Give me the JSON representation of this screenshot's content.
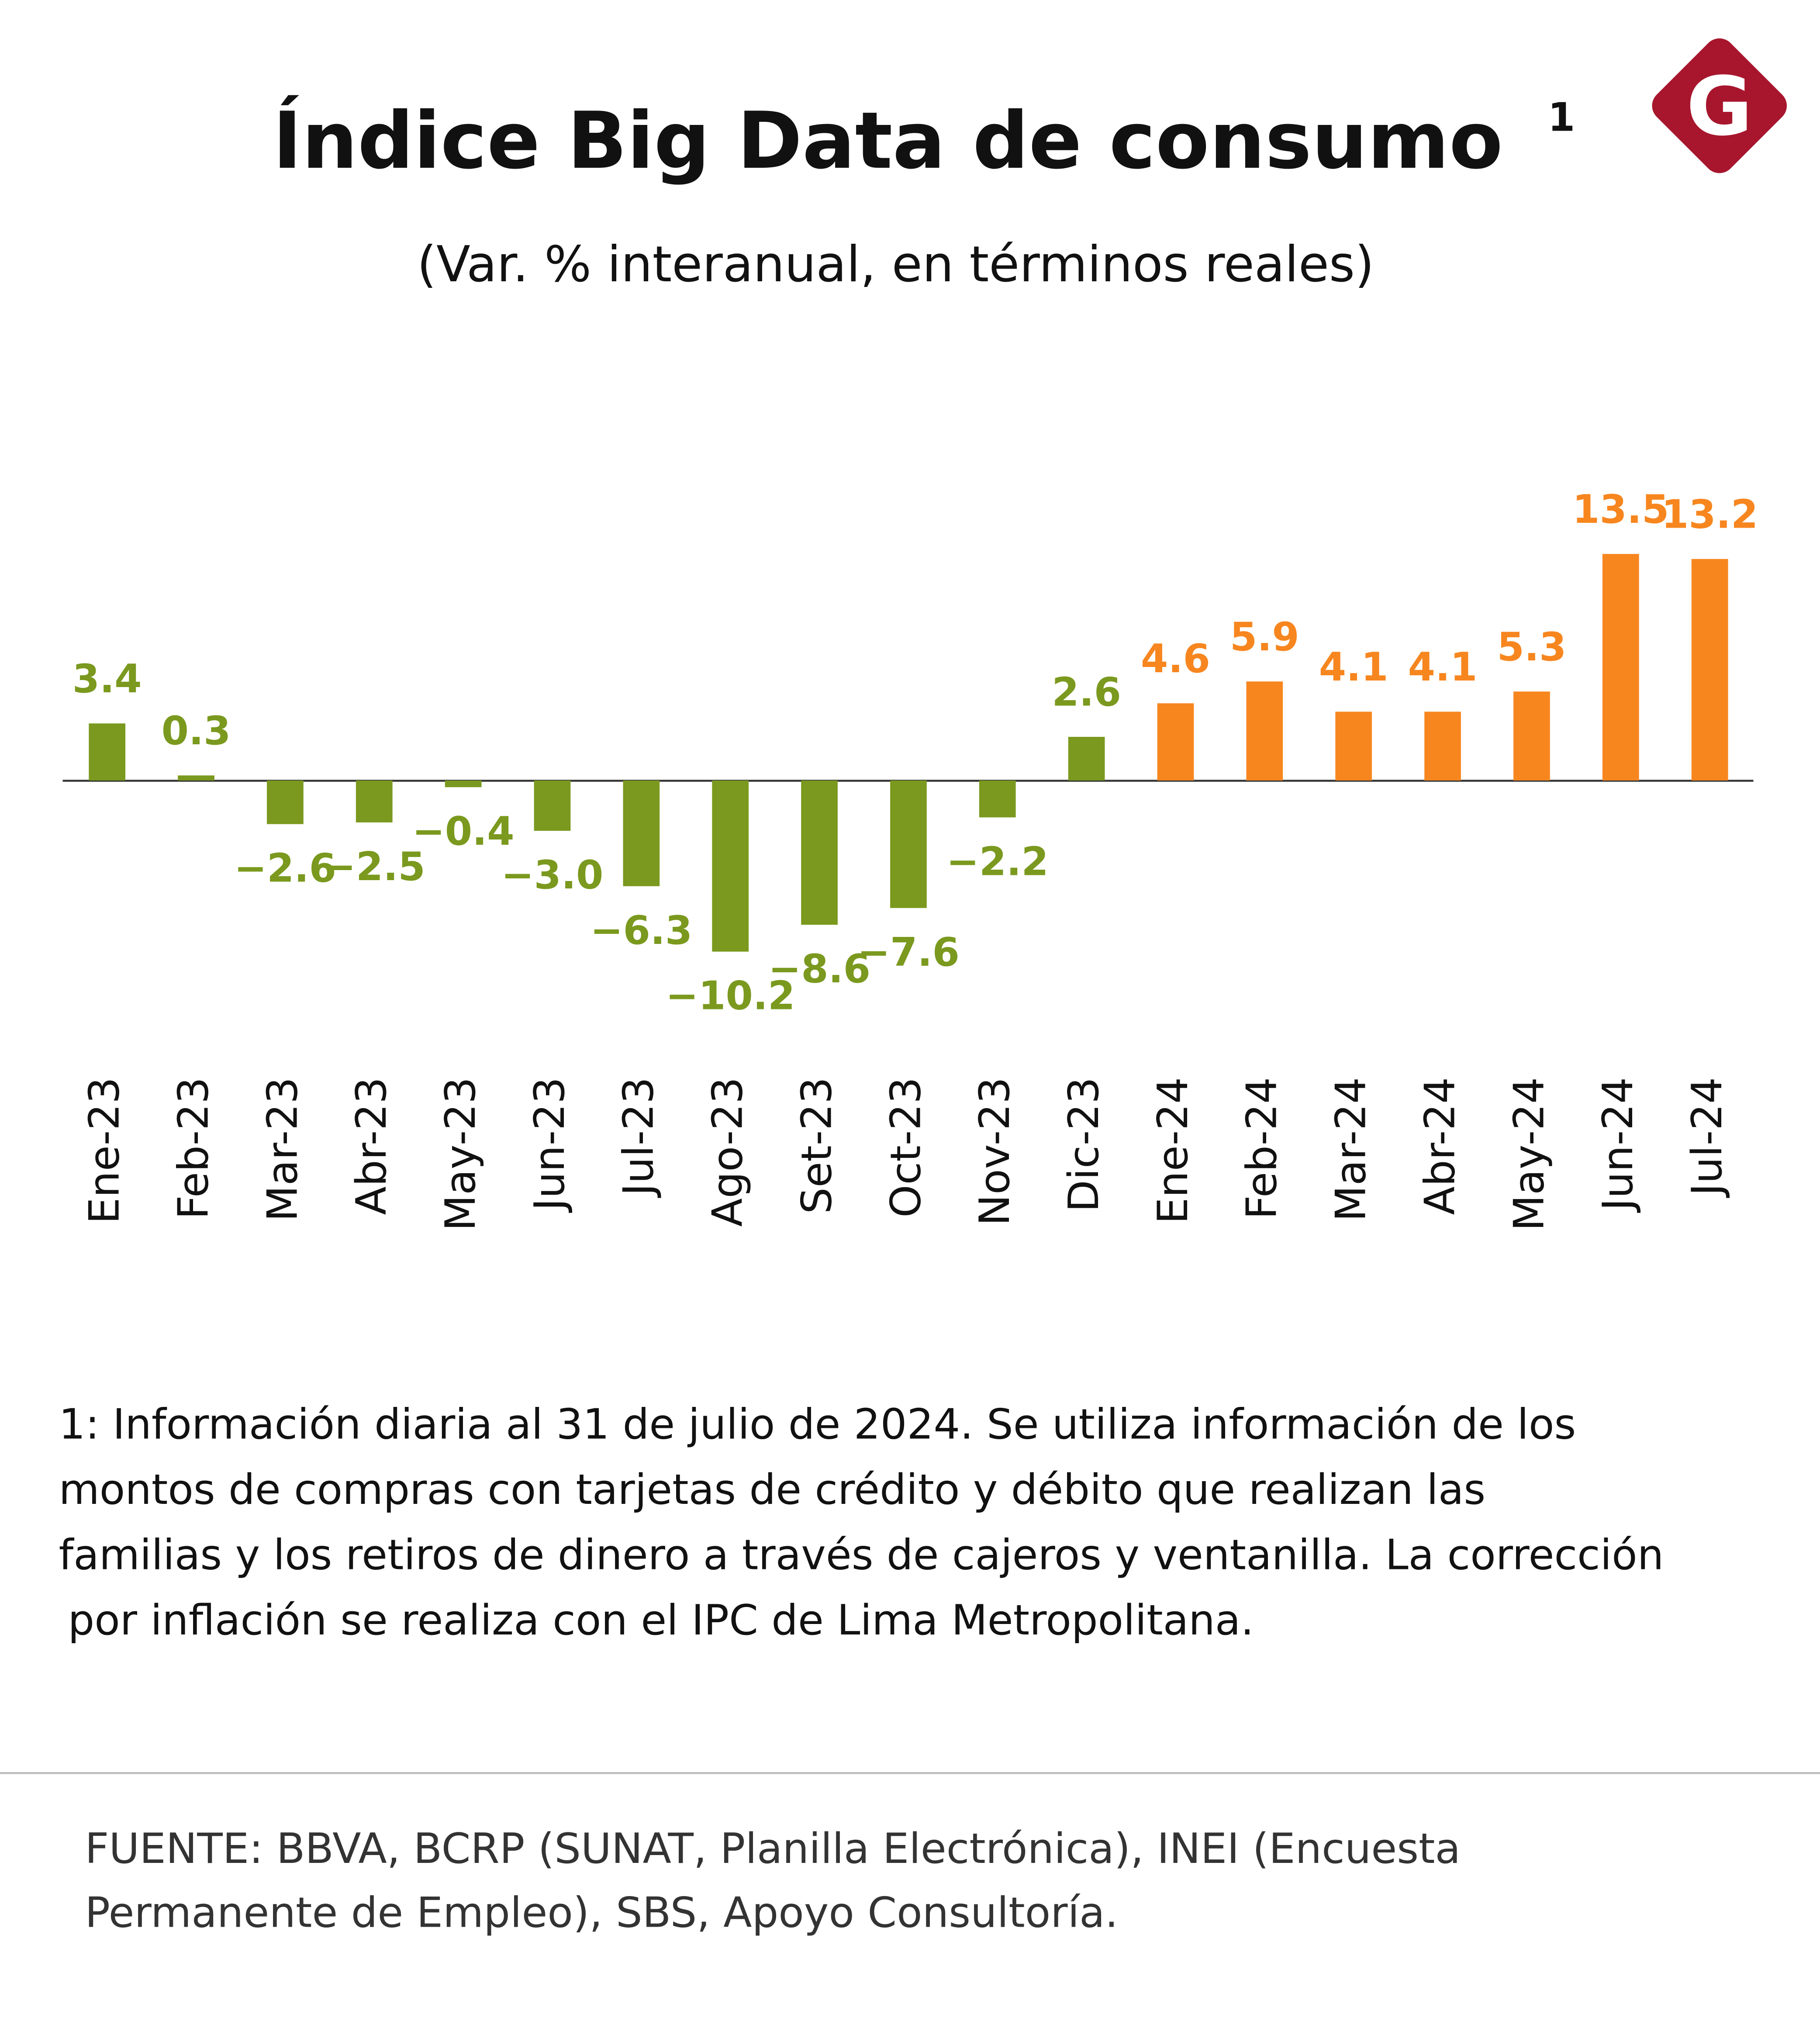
{
  "title": "Índice Big Data de consumo",
  "title_note": "1",
  "logo": "G",
  "chart_data": {
    "type": "bar",
    "subtitle": "(Var. % interanual, en términos reales)",
    "categories": [
      "Ene-23",
      "Feb-23",
      "Mar-23",
      "Abr-23",
      "May-23",
      "Jun-23",
      "Jul-23",
      "Ago-23",
      "Set-23",
      "Oct-23",
      "Nov-23",
      "Dic-23",
      "Ene-24",
      "Feb-24",
      "Mar-24",
      "Abr-24",
      "May-24",
      "Jun-24",
      "Jul-24"
    ],
    "values": [
      3.4,
      0.3,
      -2.6,
      -2.5,
      -0.4,
      -3.0,
      -6.3,
      -10.2,
      -8.6,
      -7.6,
      -2.2,
      2.6,
      4.6,
      5.9,
      4.1,
      4.1,
      5.3,
      13.5,
      13.2
    ],
    "value_labels": [
      "3.4",
      "0.3",
      "−2.6",
      "−2.5",
      "−0.4",
      "−3.0",
      "−6.3",
      "−10.2",
      "−8.6",
      "−7.6",
      "−2.2",
      "2.6",
      "4.6",
      "5.9",
      "4.1",
      "4.1",
      "5.3",
      "13.5",
      "13.2"
    ],
    "colors": [
      "#7a991e",
      "#7a991e",
      "#7a991e",
      "#7a991e",
      "#7a991e",
      "#7a991e",
      "#7a991e",
      "#7a991e",
      "#7a991e",
      "#7a991e",
      "#7a991e",
      "#7a991e",
      "#f7861f",
      "#f7861f",
      "#f7861f",
      "#f7861f",
      "#f7861f",
      "#f7861f",
      "#f7861f"
    ],
    "ylim": [
      -12,
      15
    ]
  },
  "footnote": [
    "1: Información diaria al 31 de julio de 2024. Se utiliza información de los",
    "montos de compras con tarjetas de crédito y débito que realizan las",
    "familias y los retiros de dinero a través de cajeros y ventanilla. La corrección",
    "por inflación se realiza con el IPC de Lima Metropolitana."
  ],
  "source": [
    "FUENTE: BBVA, BCRP (SUNAT, Planilla Electrónica), INEI (Encuesta",
    "Permanente de Empleo), SBS, Apoyo Consultoría."
  ]
}
